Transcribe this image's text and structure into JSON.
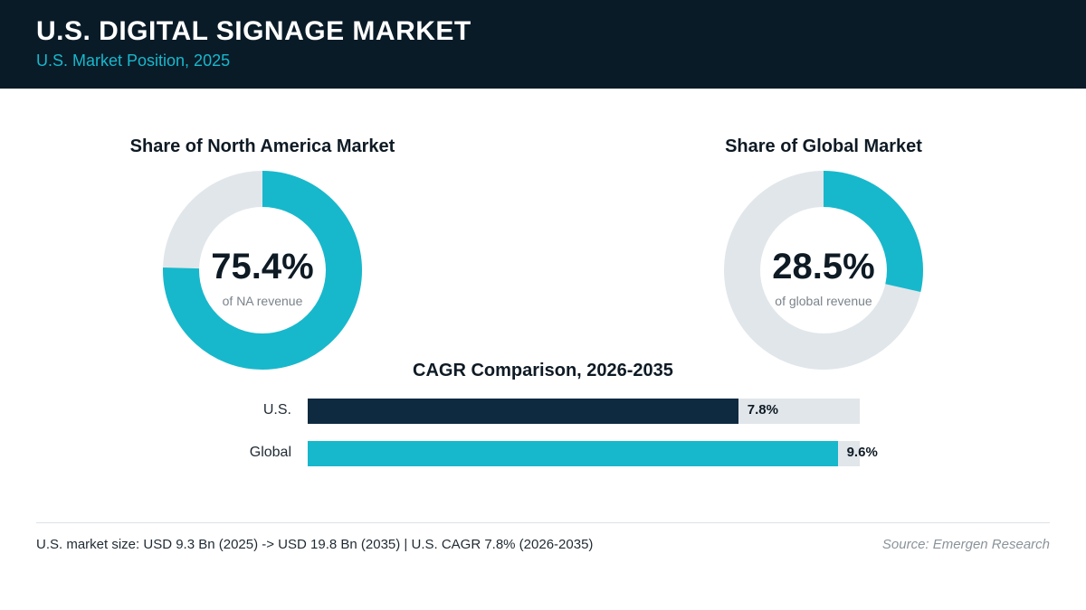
{
  "header": {
    "title": "U.S. DIGITAL SIGNAGE MARKET",
    "subtitle": "U.S. Market Position, 2025"
  },
  "colors": {
    "header_bg": "#0a1b28",
    "accent": "#17b8cc",
    "dark_bar": "#0e2a40",
    "track": "#e1e6ea"
  },
  "chart_data": [
    {
      "type": "pie",
      "title": "Share of North America Market",
      "value": 75.4,
      "value_label": "75.4%",
      "caption": "of NA revenue"
    },
    {
      "type": "pie",
      "title": "Share of Global Market",
      "value": 28.5,
      "value_label": "28.5%",
      "caption": "of global revenue"
    },
    {
      "type": "bar",
      "title": "CAGR Comparison, 2026-2035",
      "categories": [
        "U.S.",
        "Global"
      ],
      "values": [
        7.8,
        9.6
      ],
      "value_labels": [
        "7.8%",
        "9.6%"
      ],
      "xlim": [
        0,
        10
      ]
    }
  ],
  "footer": {
    "note": "U.S. market size: USD 9.3 Bn (2025) -> USD 19.8 Bn (2035)  |  U.S. CAGR 7.8% (2026-2035)",
    "source": "Source: Emergen Research"
  }
}
